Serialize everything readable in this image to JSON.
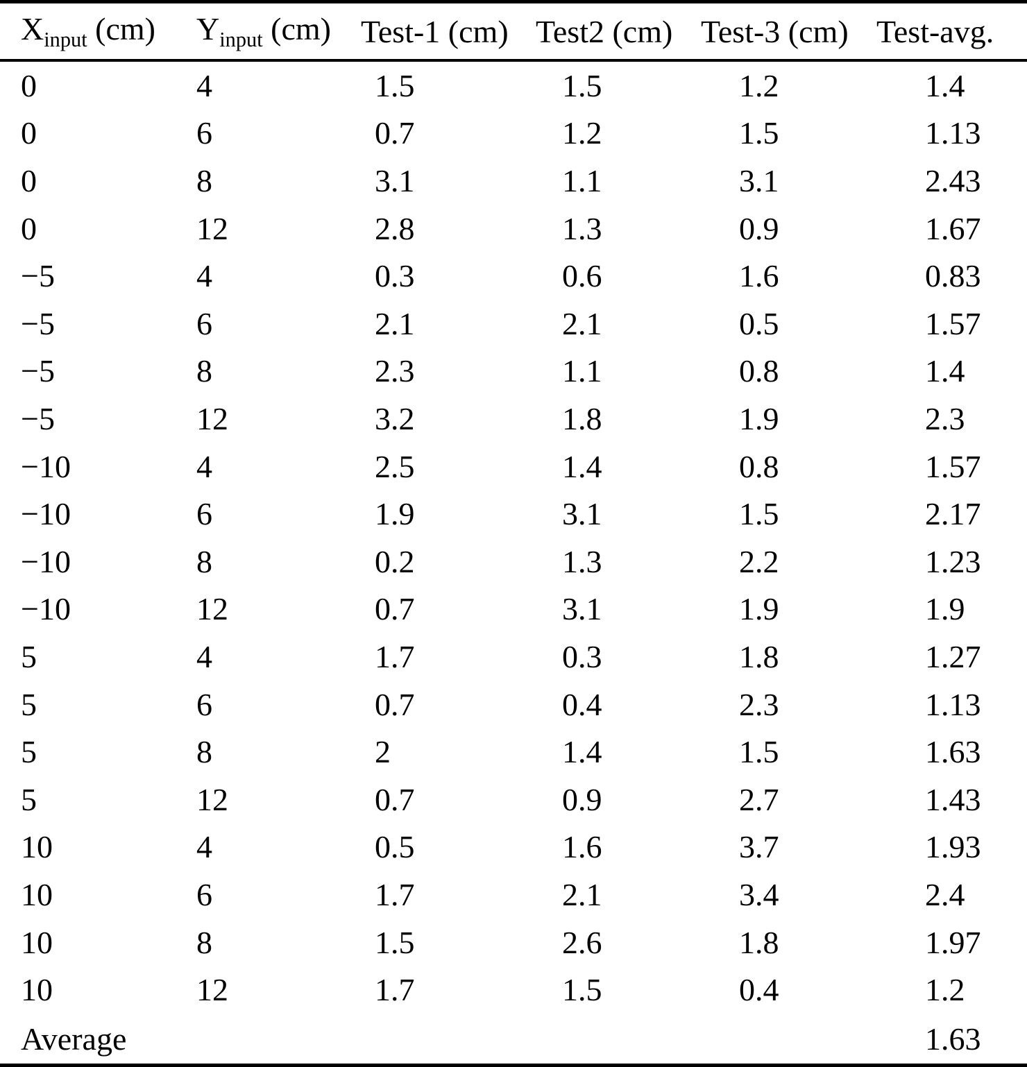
{
  "page": {
    "background_color": "#ffffff",
    "text_color": "#000000",
    "rule_color": "#000000"
  },
  "table": {
    "columns": [
      {
        "base": "X",
        "sub": "input",
        "rest": " (cm)"
      },
      {
        "base": "Y",
        "sub": "input",
        "rest": " (cm)"
      },
      {
        "base": "Test-1 (cm)",
        "sub": "",
        "rest": ""
      },
      {
        "base": "Test2 (cm)",
        "sub": "",
        "rest": ""
      },
      {
        "base": "Test-3 (cm)",
        "sub": "",
        "rest": ""
      },
      {
        "base": "Test-avg.",
        "sub": "",
        "rest": ""
      }
    ],
    "rows": [
      [
        "0",
        "4",
        "1.5",
        "1.5",
        "1.2",
        "1.4"
      ],
      [
        "0",
        "6",
        "0.7",
        "1.2",
        "1.5",
        "1.13"
      ],
      [
        "0",
        "8",
        "3.1",
        "1.1",
        "3.1",
        "2.43"
      ],
      [
        "0",
        "12",
        "2.8",
        "1.3",
        "0.9",
        "1.67"
      ],
      [
        "−5",
        "4",
        "0.3",
        "0.6",
        "1.6",
        "0.83"
      ],
      [
        "−5",
        "6",
        "2.1",
        "2.1",
        "0.5",
        "1.57"
      ],
      [
        "−5",
        "8",
        "2.3",
        "1.1",
        "0.8",
        "1.4"
      ],
      [
        "−5",
        "12",
        "3.2",
        "1.8",
        "1.9",
        "2.3"
      ],
      [
        "−10",
        "4",
        "2.5",
        "1.4",
        "0.8",
        "1.57"
      ],
      [
        "−10",
        "6",
        "1.9",
        "3.1",
        "1.5",
        "2.17"
      ],
      [
        "−10",
        "8",
        "0.2",
        "1.3",
        "2.2",
        "1.23"
      ],
      [
        "−10",
        "12",
        "0.7",
        "3.1",
        "1.9",
        "1.9"
      ],
      [
        "5",
        "4",
        "1.7",
        "0.3",
        "1.8",
        "1.27"
      ],
      [
        "5",
        "6",
        "0.7",
        "0.4",
        "2.3",
        "1.13"
      ],
      [
        "5",
        "8",
        "2",
        "1.4",
        "1.5",
        "1.63"
      ],
      [
        "5",
        "12",
        "0.7",
        "0.9",
        "2.7",
        "1.43"
      ],
      [
        "10",
        "4",
        "0.5",
        "1.6",
        "3.7",
        "1.93"
      ],
      [
        "10",
        "6",
        "1.7",
        "2.1",
        "3.4",
        "2.4"
      ],
      [
        "10",
        "8",
        "1.5",
        "2.6",
        "1.8",
        "1.97"
      ],
      [
        "10",
        "12",
        "1.7",
        "1.5",
        "0.4",
        "1.2"
      ]
    ],
    "footer": {
      "label": "Average",
      "empty": "",
      "value": "1.63"
    }
  }
}
